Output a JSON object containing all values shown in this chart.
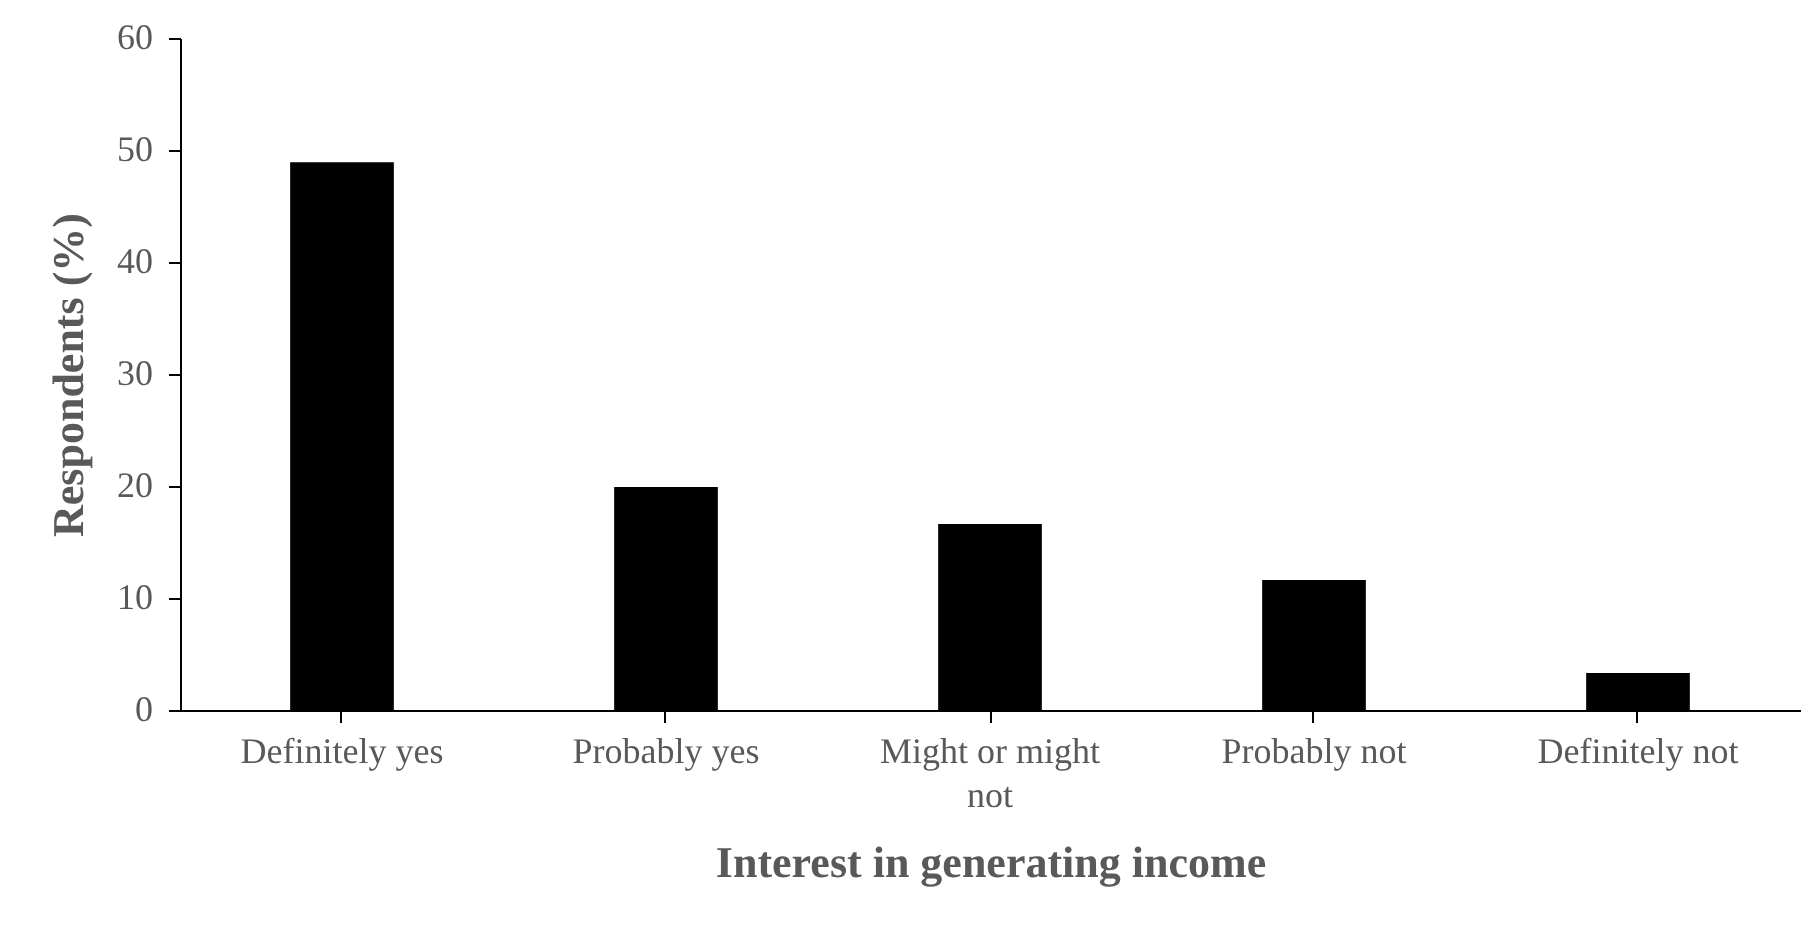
{
  "chart_data": {
    "type": "bar",
    "xlabel": "Interest in generating income",
    "ylabel": "Respondents (%)",
    "categories": [
      "Definitely yes",
      "Probably yes",
      "Might or might not",
      "Probably not",
      "Definitely not"
    ],
    "values": [
      48.9,
      19.9,
      16.6,
      11.6,
      3.3
    ],
    "color": "#000000",
    "ylim": [
      0,
      60
    ],
    "yticks": [
      0,
      10,
      20,
      30,
      40,
      50,
      60
    ],
    "grid": false
  }
}
